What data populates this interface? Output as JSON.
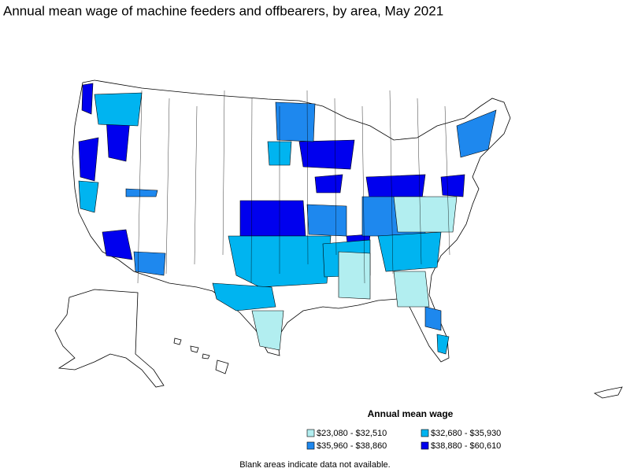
{
  "title": "Annual mean wage of machine feeders and offbearers, by area, May 2021",
  "legend": {
    "title": "Annual mean wage",
    "items": [
      {
        "label": "$23,080 - $32,510",
        "color": "#b2eef0"
      },
      {
        "label": "$32,680 - $35,930",
        "color": "#00b4f0"
      },
      {
        "label": "$35,960 - $38,860",
        "color": "#1e88ee"
      },
      {
        "label": "$38,880 - $60,610",
        "color": "#0000ee"
      }
    ]
  },
  "note": "Blank areas indicate data not available."
}
